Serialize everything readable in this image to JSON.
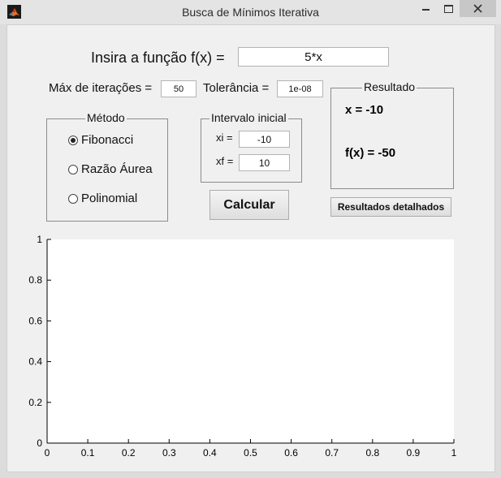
{
  "window": {
    "title": "Busca de Mínimos Iterativa",
    "icon": "matlab-icon"
  },
  "function_input": {
    "label": "Insira a função f(x) =",
    "value": "5*x"
  },
  "iterations": {
    "label": "Máx de iterações =",
    "value": "50"
  },
  "tolerance": {
    "label": "Tolerância =",
    "value": "1e-08"
  },
  "method": {
    "title": "Método",
    "options": [
      {
        "label": "Fibonacci",
        "selected": true
      },
      {
        "label": "Razão Áurea",
        "selected": false
      },
      {
        "label": "Polinomial",
        "selected": false
      }
    ]
  },
  "interval": {
    "title": "Intervalo inicial",
    "xi_label": "xi =",
    "xi_value": "-10",
    "xf_label": "xf =",
    "xf_value": "10"
  },
  "result": {
    "title": "Resultado",
    "x_text": "x = -10",
    "fx_text": "f(x) = -50"
  },
  "buttons": {
    "calculate": "Calcular",
    "details": "Resultados detalhados"
  },
  "chart_data": {
    "type": "line",
    "title": "",
    "xlabel": "",
    "ylabel": "",
    "xlim": [
      0,
      1
    ],
    "ylim": [
      0,
      1
    ],
    "xticks": [
      "0",
      "0.1",
      "0.2",
      "0.3",
      "0.4",
      "0.5",
      "0.6",
      "0.7",
      "0.8",
      "0.9",
      "1"
    ],
    "yticks": [
      "0",
      "0.2",
      "0.4",
      "0.6",
      "0.8",
      "1"
    ],
    "series": [],
    "grid": false
  }
}
